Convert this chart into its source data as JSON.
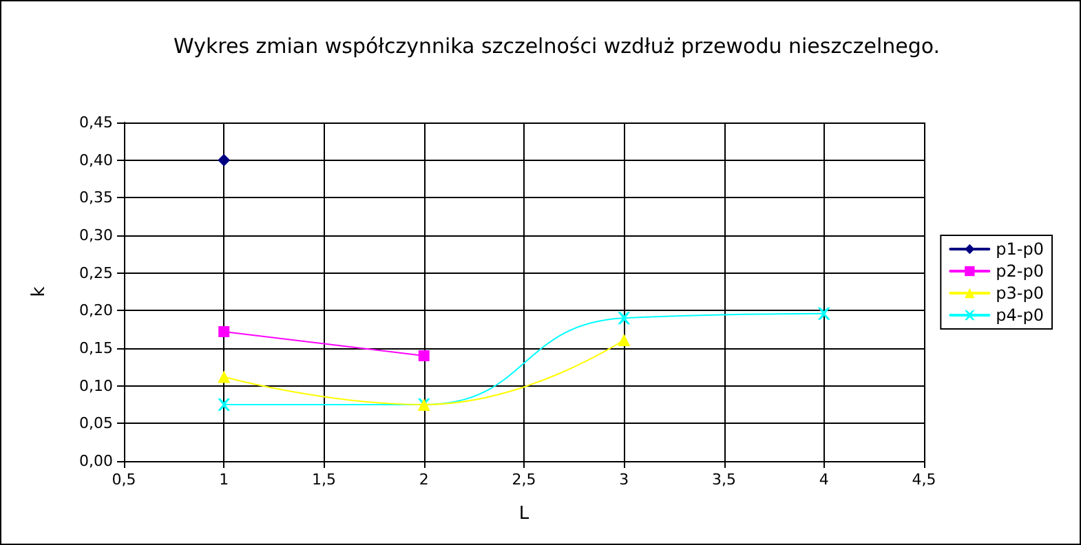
{
  "chart_data": {
    "type": "line",
    "title": "Wykres zmian współczynnika szczelności wzdłuż przewodu nieszczelnego.",
    "xlabel": "L",
    "ylabel": "k",
    "series": [
      {
        "name": "p1-p0",
        "color": "#000080",
        "marker": "diamond",
        "x": [
          1
        ],
        "values": [
          0.4
        ]
      },
      {
        "name": "p2-p0",
        "color": "#ff00ff",
        "marker": "square",
        "x": [
          1,
          2
        ],
        "values": [
          0.172,
          0.14
        ]
      },
      {
        "name": "p3-p0",
        "color": "#ffff00",
        "marker": "triangle",
        "x": [
          1,
          2,
          3
        ],
        "values": [
          0.112,
          0.075,
          0.161
        ]
      },
      {
        "name": "p4-p0",
        "color": "#00ffff",
        "marker": "cross",
        "x": [
          1,
          2,
          3,
          4
        ],
        "values": [
          0.075,
          0.075,
          0.19,
          0.196
        ]
      }
    ],
    "xlim": [
      0.5,
      4.5
    ],
    "xticks": [
      {
        "value": 0.5,
        "label": "0,5"
      },
      {
        "value": 1,
        "label": "1"
      },
      {
        "value": 1.5,
        "label": "1,5"
      },
      {
        "value": 2,
        "label": "2"
      },
      {
        "value": 2.5,
        "label": "2,5"
      },
      {
        "value": 3,
        "label": "3"
      },
      {
        "value": 3.5,
        "label": "3,5"
      },
      {
        "value": 4,
        "label": "4"
      },
      {
        "value": 4.5,
        "label": "4,5"
      }
    ],
    "ylim": [
      0,
      0.45
    ],
    "yticks": [
      {
        "value": 0,
        "label": "0,00"
      },
      {
        "value": 0.05,
        "label": "0,05"
      },
      {
        "value": 0.1,
        "label": "0,10"
      },
      {
        "value": 0.15,
        "label": "0,15"
      },
      {
        "value": 0.2,
        "label": "0,20"
      },
      {
        "value": 0.25,
        "label": "0,25"
      },
      {
        "value": 0.3,
        "label": "0,30"
      },
      {
        "value": 0.35,
        "label": "0,35"
      },
      {
        "value": 0.4,
        "label": "0,40"
      },
      {
        "value": 0.45,
        "label": "0,45"
      }
    ],
    "grid": true,
    "legend": "right"
  }
}
